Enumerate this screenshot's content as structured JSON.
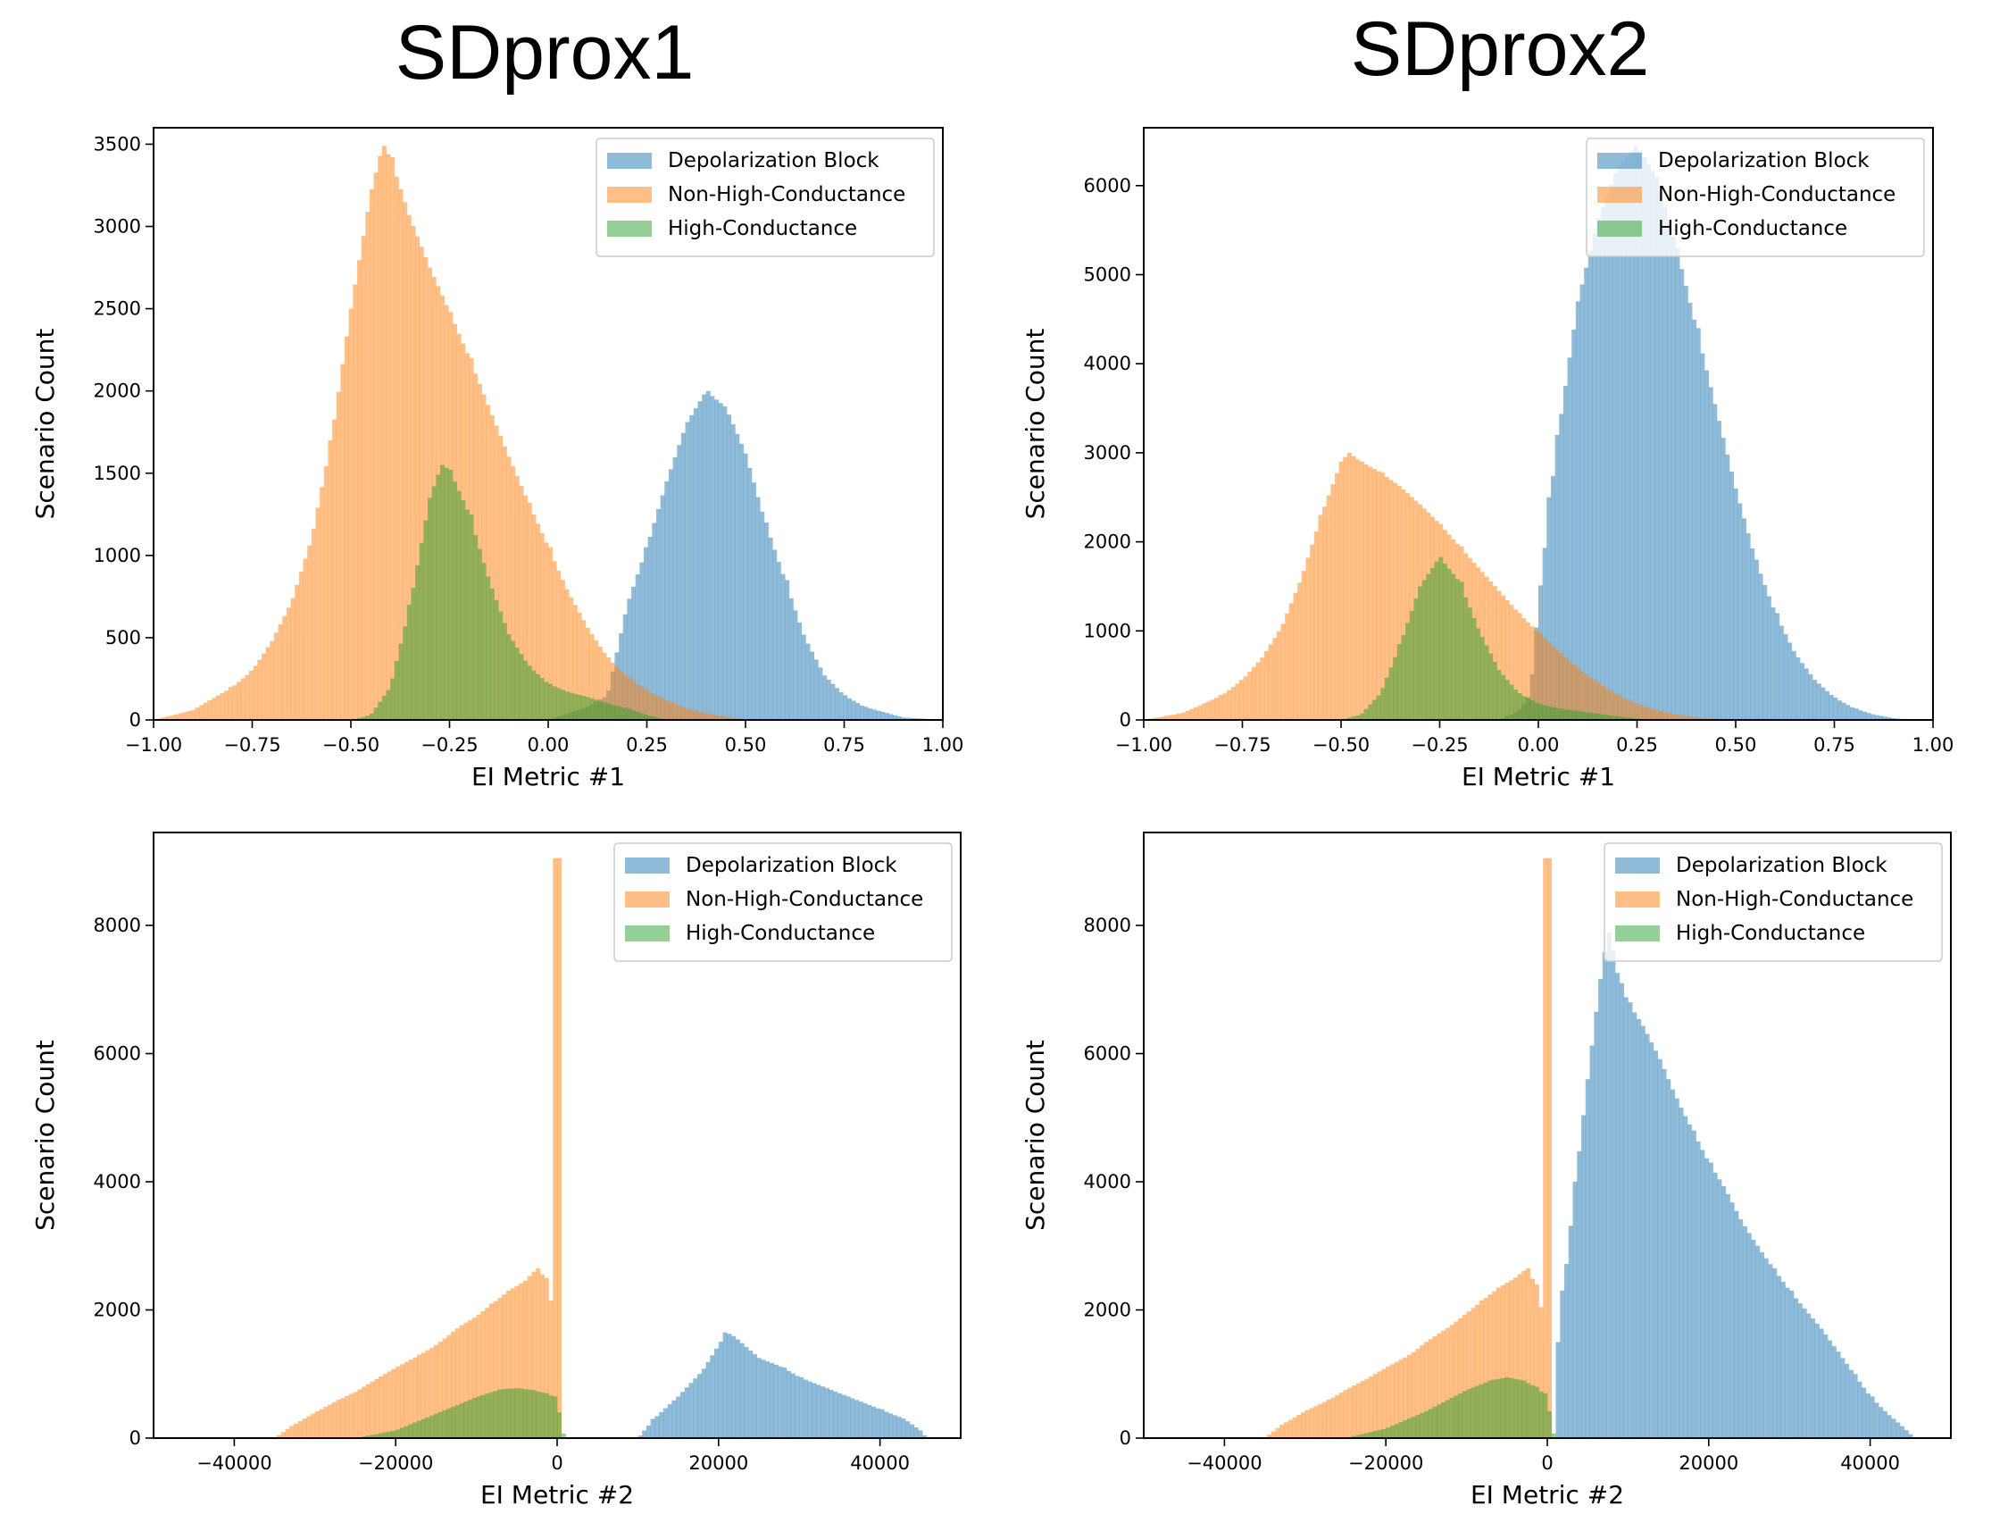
{
  "columns": {
    "left_title": "SDprox1",
    "right_title": "SDprox2"
  },
  "colors": {
    "Depolarization Block": "#1f77b4",
    "Non-High-Conductance": "#ff7f0e",
    "High-Conductance": "#2ca02c"
  },
  "chart_data": [
    {
      "type": "histogram",
      "title": "SDprox1",
      "xlabel": "EI Metric #1",
      "ylabel": "Scenario Count",
      "xlim": [
        -1.0,
        1.0
      ],
      "ylim": [
        0,
        3600
      ],
      "xticks": [
        -1.0,
        -0.75,
        -0.5,
        -0.25,
        0.0,
        0.25,
        0.5,
        0.75,
        1.0
      ],
      "xtick_labels": [
        "−1.00",
        "−0.75",
        "−0.50",
        "−0.25",
        "0.00",
        "0.25",
        "0.50",
        "0.75",
        "1.00"
      ],
      "yticks": [
        0,
        500,
        1000,
        1500,
        2000,
        2500,
        3000,
        3500
      ],
      "ytick_labels": [
        "0",
        "500",
        "1000",
        "1500",
        "2000",
        "2500",
        "3000",
        "3500"
      ],
      "legend": "top-right",
      "series": [
        {
          "name": "Depolarization Block",
          "x": [
            0.0,
            0.1,
            0.15,
            0.2,
            0.25,
            0.3,
            0.35,
            0.4,
            0.45,
            0.5,
            0.55,
            0.6,
            0.65,
            0.7,
            0.75,
            0.8,
            0.9,
            1.0
          ],
          "y": [
            0,
            80,
            150,
            700,
            1050,
            1450,
            1800,
            2000,
            1900,
            1620,
            1200,
            850,
            500,
            270,
            150,
            80,
            15,
            0
          ]
        },
        {
          "name": "Non-High-Conductance",
          "x": [
            -1.0,
            -0.9,
            -0.8,
            -0.75,
            -0.7,
            -0.65,
            -0.6,
            -0.55,
            -0.5,
            -0.45,
            -0.42,
            -0.4,
            -0.35,
            -0.3,
            -0.25,
            -0.2,
            -0.15,
            -0.1,
            -0.05,
            0.0,
            0.05,
            0.1,
            0.15,
            0.2,
            0.25,
            0.3,
            0.35,
            0.4,
            0.45,
            0.5
          ],
          "y": [
            0,
            60,
            200,
            300,
            480,
            720,
            1100,
            1700,
            2500,
            3200,
            3490,
            3420,
            3050,
            2750,
            2480,
            2200,
            1900,
            1600,
            1320,
            1050,
            780,
            560,
            380,
            260,
            180,
            120,
            70,
            40,
            20,
            0
          ]
        },
        {
          "name": "High-Conductance",
          "x": [
            -0.5,
            -0.45,
            -0.4,
            -0.35,
            -0.3,
            -0.27,
            -0.25,
            -0.2,
            -0.15,
            -0.1,
            -0.05,
            0.0,
            0.05,
            0.1,
            0.15,
            0.2,
            0.25,
            0.3
          ],
          "y": [
            0,
            30,
            200,
            700,
            1350,
            1550,
            1520,
            1250,
            850,
            520,
            330,
            220,
            170,
            140,
            100,
            70,
            30,
            0
          ]
        }
      ]
    },
    {
      "type": "histogram",
      "title": "SDprox2",
      "xlabel": "EI Metric #1",
      "ylabel": "Scenario Count",
      "xlim": [
        -1.0,
        1.0
      ],
      "ylim": [
        0,
        6650
      ],
      "xticks": [
        -1.0,
        -0.75,
        -0.5,
        -0.25,
        0.0,
        0.25,
        0.5,
        0.75,
        1.0
      ],
      "xtick_labels": [
        "−1.00",
        "−0.75",
        "−0.50",
        "−0.25",
        "0.00",
        "0.25",
        "0.50",
        "0.75",
        "1.00"
      ],
      "yticks": [
        0,
        1000,
        2000,
        3000,
        4000,
        5000,
        6000
      ],
      "ytick_labels": [
        "0",
        "1000",
        "2000",
        "3000",
        "4000",
        "5000",
        "6000"
      ],
      "legend": "top-right",
      "series": [
        {
          "name": "Depolarization Block",
          "x": [
            -0.1,
            -0.05,
            -0.02,
            0.0,
            0.03,
            0.05,
            0.1,
            0.15,
            0.2,
            0.25,
            0.3,
            0.35,
            0.4,
            0.45,
            0.5,
            0.55,
            0.6,
            0.65,
            0.7,
            0.75,
            0.8,
            0.85,
            0.9,
            0.95
          ],
          "y": [
            0,
            100,
            300,
            1300,
            2500,
            3200,
            4700,
            5600,
            6200,
            6450,
            6100,
            5300,
            4400,
            3500,
            2600,
            1800,
            1200,
            750,
            450,
            250,
            130,
            60,
            20,
            0
          ]
        },
        {
          "name": "Non-High-Conductance",
          "x": [
            -1.0,
            -0.9,
            -0.8,
            -0.75,
            -0.7,
            -0.65,
            -0.6,
            -0.55,
            -0.5,
            -0.48,
            -0.45,
            -0.4,
            -0.35,
            -0.3,
            -0.25,
            -0.2,
            -0.15,
            -0.1,
            -0.05,
            0.0,
            0.05,
            0.1,
            0.15,
            0.2,
            0.25,
            0.3,
            0.35,
            0.4,
            0.45,
            0.5
          ],
          "y": [
            0,
            80,
            280,
            450,
            700,
            1050,
            1600,
            2300,
            2900,
            3000,
            2900,
            2780,
            2620,
            2420,
            2200,
            1950,
            1700,
            1450,
            1200,
            980,
            780,
            580,
            420,
            280,
            180,
            110,
            60,
            30,
            10,
            0
          ]
        },
        {
          "name": "High-Conductance",
          "x": [
            -0.5,
            -0.45,
            -0.4,
            -0.35,
            -0.3,
            -0.25,
            -0.2,
            -0.15,
            -0.1,
            -0.05,
            0.0,
            0.05,
            0.1,
            0.15,
            0.2,
            0.25,
            0.3
          ],
          "y": [
            0,
            60,
            300,
            850,
            1500,
            1830,
            1550,
            1000,
            560,
            300,
            180,
            130,
            100,
            70,
            40,
            15,
            0
          ]
        }
      ]
    },
    {
      "type": "histogram",
      "xlabel": "EI Metric #2",
      "ylabel": "Scenario Count",
      "xlim": [
        -50000,
        50000
      ],
      "ylim": [
        0,
        9450
      ],
      "xticks": [
        -40000,
        -20000,
        0,
        20000,
        40000
      ],
      "xtick_labels": [
        "−40000",
        "−20000",
        "0",
        "20000",
        "40000"
      ],
      "yticks": [
        0,
        2000,
        4000,
        6000,
        8000
      ],
      "ytick_labels": [
        "0",
        "2000",
        "4000",
        "6000",
        "8000"
      ],
      "legend": "top-right",
      "series": [
        {
          "name": "Depolarization Block",
          "x": [
            10000,
            12000,
            15000,
            18000,
            20000,
            21000,
            22000,
            25000,
            28000,
            30000,
            33000,
            36000,
            40000,
            43000,
            45000,
            45800
          ],
          "y": [
            0,
            300,
            650,
            1050,
            1450,
            1650,
            1580,
            1250,
            1100,
            950,
            800,
            650,
            450,
            300,
            120,
            0
          ]
        },
        {
          "name": "Non-High-Conductance",
          "x": [
            -35000,
            -33000,
            -30000,
            -27000,
            -25000,
            -22000,
            -20000,
            -17000,
            -15000,
            -12000,
            -10000,
            -8000,
            -6000,
            -4000,
            -2500,
            -1500,
            -500,
            -150,
            -50,
            50,
            150
          ],
          "y": [
            0,
            180,
            400,
            600,
            720,
            950,
            1100,
            1300,
            1450,
            1750,
            1900,
            2100,
            2300,
            2450,
            2650,
            2500,
            2000,
            1700,
            9050,
            9050,
            0
          ]
        },
        {
          "name": "High-Conductance",
          "x": [
            -25000,
            -20000,
            -15000,
            -10000,
            -7000,
            -5000,
            -3000,
            -1500,
            -500,
            0,
            500,
            900
          ],
          "y": [
            0,
            120,
            380,
            640,
            760,
            780,
            750,
            700,
            650,
            400,
            250,
            0
          ]
        }
      ]
    },
    {
      "type": "histogram",
      "xlabel": "EI Metric #2",
      "ylabel": "Scenario Count",
      "xlim": [
        -50000,
        50000
      ],
      "ylim": [
        0,
        9450
      ],
      "xticks": [
        -40000,
        -20000,
        0,
        20000,
        40000
      ],
      "xtick_labels": [
        "−40000",
        "−20000",
        "0",
        "20000",
        "40000"
      ],
      "yticks": [
        0,
        2000,
        4000,
        6000,
        8000
      ],
      "ytick_labels": [
        "0",
        "2000",
        "4000",
        "6000",
        "8000"
      ],
      "legend": "top-right",
      "series": [
        {
          "name": "Depolarization Block",
          "x": [
            1000,
            1500,
            2000,
            3500,
            5000,
            6500,
            7500,
            8000,
            9000,
            10000,
            12000,
            14000,
            16000,
            18000,
            20000,
            22000,
            24000,
            26000,
            28000,
            30000,
            32000,
            34000,
            36000,
            38000,
            40000,
            42000,
            44000,
            45500
          ],
          "y": [
            0,
            1500,
            2300,
            4000,
            5600,
            7100,
            7900,
            7600,
            7100,
            6800,
            6400,
            5900,
            5300,
            4800,
            4300,
            3900,
            3400,
            3000,
            2650,
            2300,
            2000,
            1700,
            1350,
            1000,
            650,
            400,
            180,
            0
          ]
        },
        {
          "name": "Non-High-Conductance",
          "x": [
            -35000,
            -33000,
            -30000,
            -27000,
            -25000,
            -22000,
            -20000,
            -17000,
            -15000,
            -12000,
            -10000,
            -8000,
            -6000,
            -4000,
            -2500,
            -1500,
            -500,
            -150,
            -50,
            50,
            150
          ],
          "y": [
            0,
            200,
            420,
            600,
            750,
            950,
            1100,
            1300,
            1500,
            1750,
            1950,
            2150,
            2350,
            2500,
            2650,
            2400,
            1900,
            1700,
            9050,
            9050,
            0
          ]
        },
        {
          "name": "High-Conductance",
          "x": [
            -25000,
            -20000,
            -15000,
            -10000,
            -7000,
            -5000,
            -3000,
            -1500,
            -500,
            0,
            500,
            900
          ],
          "y": [
            0,
            150,
            420,
            750,
            900,
            950,
            900,
            800,
            700,
            420,
            250,
            0
          ]
        }
      ]
    }
  ]
}
